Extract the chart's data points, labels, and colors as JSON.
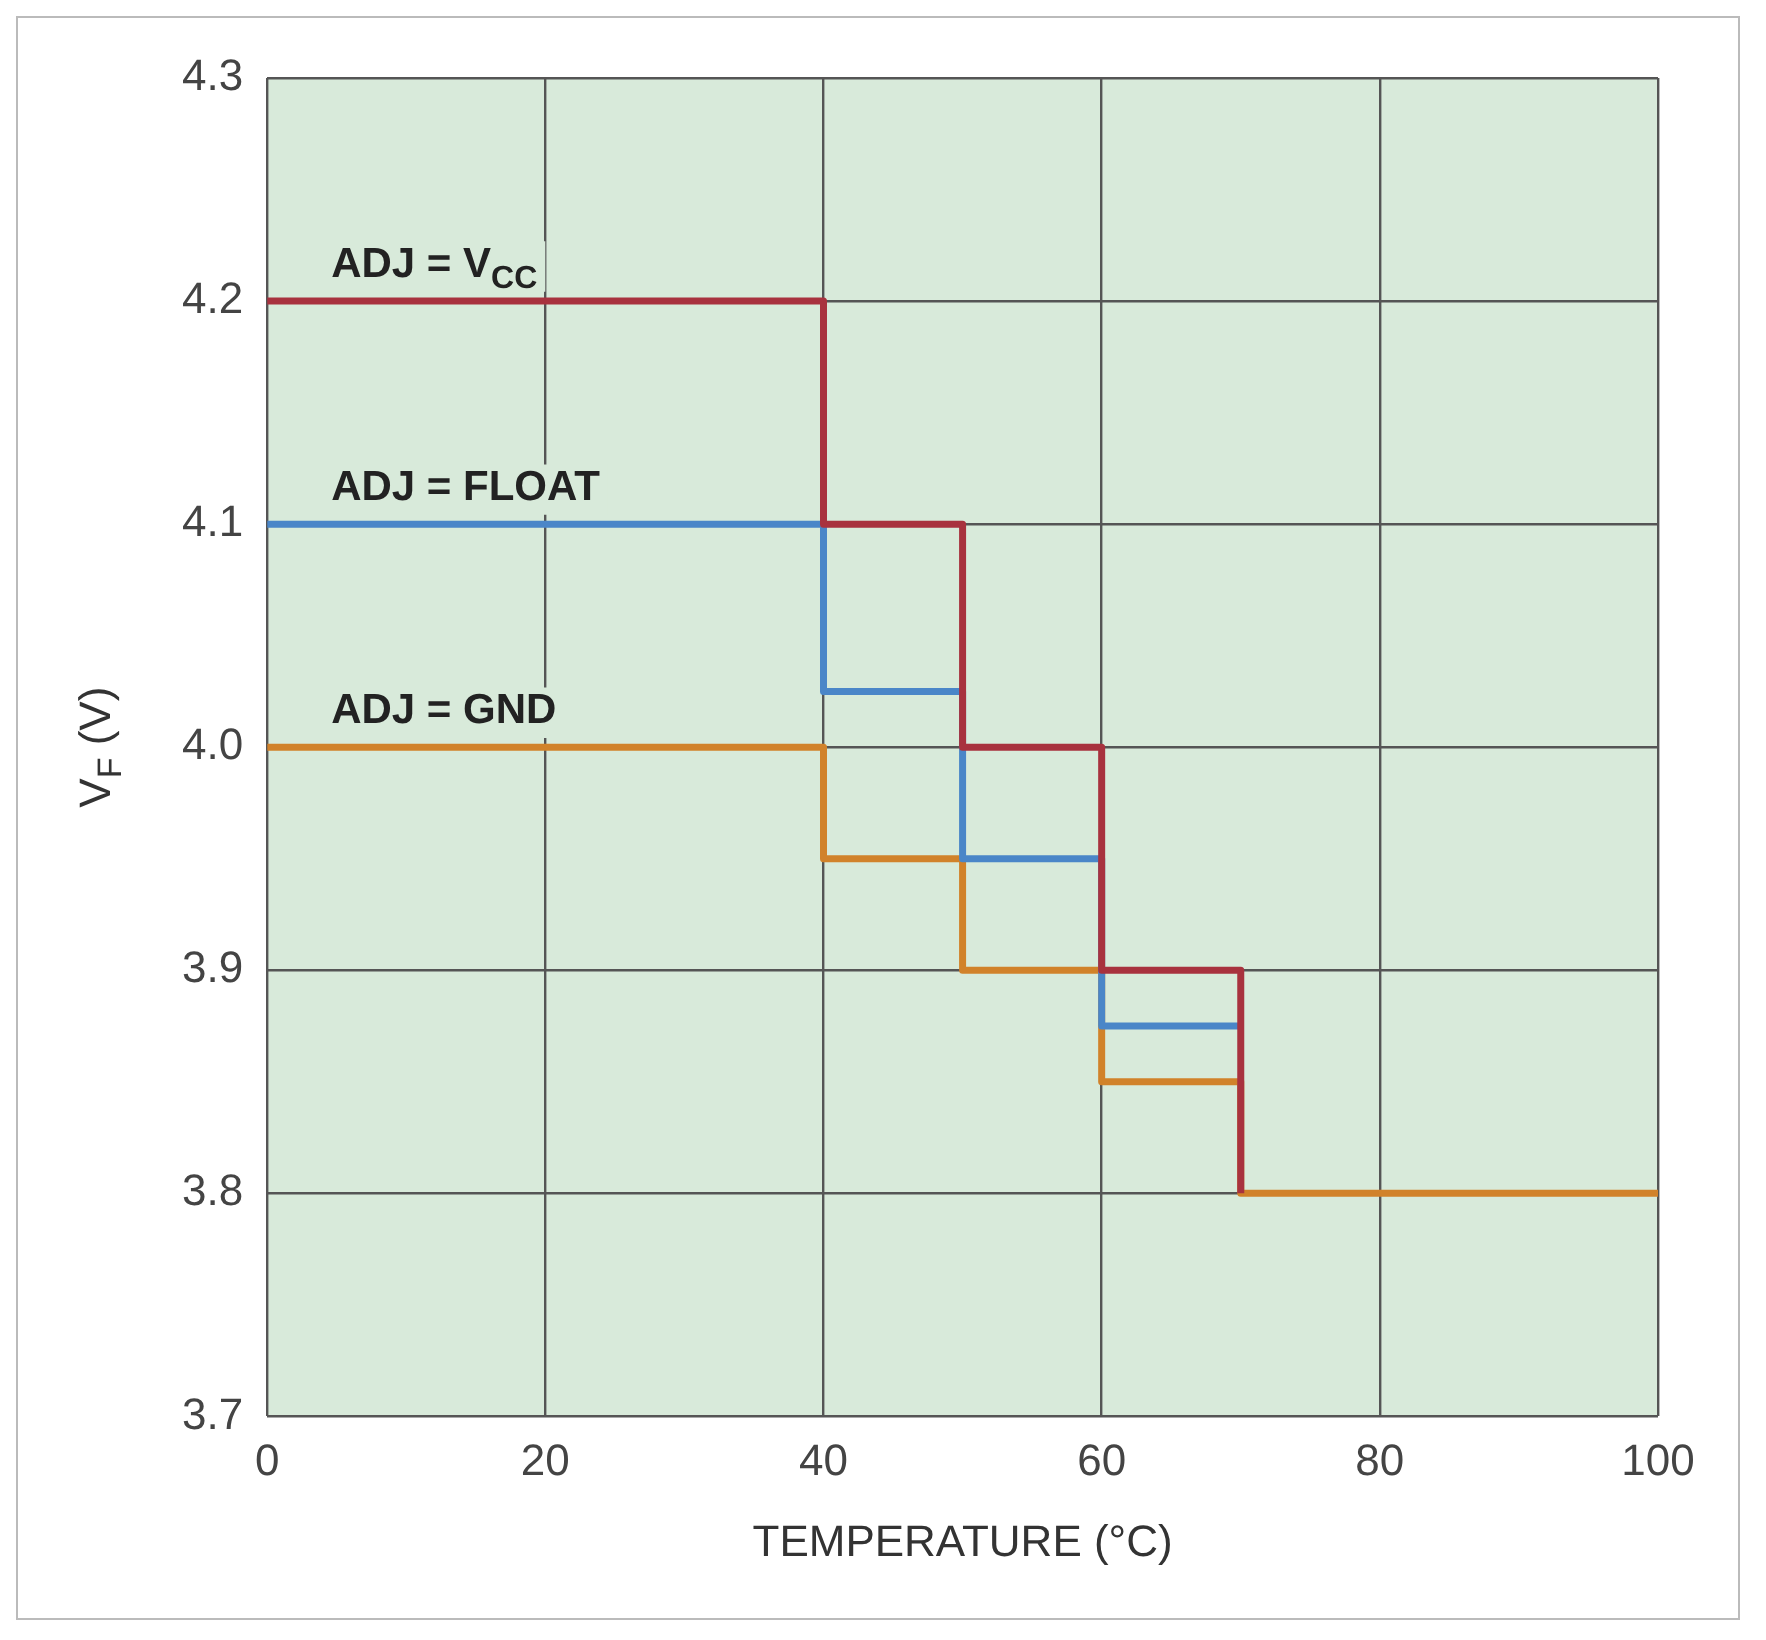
{
  "chart_data": {
    "type": "step",
    "xlabel": "TEMPERATURE (°C)",
    "ylabel": "V$_{F}$ (V)",
    "xlim": [
      0,
      100
    ],
    "xticks": [
      0,
      20,
      40,
      60,
      80,
      100
    ],
    "ylim": [
      3.7,
      4.3
    ],
    "yticks": [
      {
        "value": 3.7,
        "label": "3.7"
      },
      {
        "value": 3.8,
        "label": "3.8"
      },
      {
        "value": 3.9,
        "label": "3.9"
      },
      {
        "value": 4.0,
        "label": "4.0"
      },
      {
        "value": 4.1,
        "label": "4.1"
      },
      {
        "value": 4.2,
        "label": "4.2"
      },
      {
        "value": 4.3,
        "label": "4.3"
      }
    ],
    "grid": true,
    "series": [
      {
        "name": "ADJ = V$_{CC}$",
        "color": "#a8323e",
        "x": [
          0,
          40,
          50,
          60,
          70
        ],
        "values": [
          4.2,
          4.1,
          4.0,
          3.9,
          3.8
        ]
      },
      {
        "name": "ADJ = FLOAT",
        "color": "#4a86c8",
        "x": [
          0,
          40,
          50,
          60,
          70
        ],
        "values": [
          4.1,
          4.025,
          3.95,
          3.875,
          3.875
        ]
      },
      {
        "name": "ADJ = GND",
        "color": "#d1822a",
        "x": [
          0,
          40,
          50,
          60,
          70,
          100
        ],
        "values": [
          4.0,
          3.95,
          3.9,
          3.85,
          3.8,
          3.8
        ]
      }
    ]
  }
}
